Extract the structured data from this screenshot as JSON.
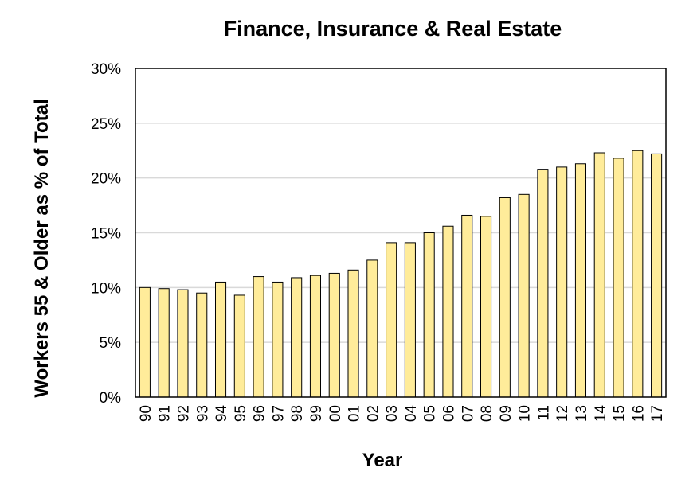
{
  "chart_data": {
    "type": "bar",
    "title": "Finance, Insurance & Real Estate",
    "xlabel": "Year",
    "ylabel": "Workers 55 & Older as % of Total",
    "categories": [
      "90",
      "91",
      "92",
      "93",
      "94",
      "95",
      "96",
      "97",
      "98",
      "99",
      "00",
      "01",
      "02",
      "03",
      "04",
      "05",
      "06",
      "07",
      "08",
      "09",
      "10",
      "11",
      "12",
      "13",
      "14",
      "15",
      "16",
      "17"
    ],
    "values": [
      10.0,
      9.9,
      9.8,
      9.5,
      10.5,
      9.3,
      11.0,
      10.5,
      10.9,
      11.1,
      11.3,
      11.6,
      12.5,
      14.1,
      14.1,
      15.0,
      15.6,
      16.6,
      16.5,
      18.2,
      18.5,
      20.8,
      21.0,
      21.3,
      22.3,
      21.8,
      22.5,
      22.2
    ],
    "ylim": [
      0,
      30
    ],
    "yticks": [
      0,
      5,
      10,
      15,
      20,
      25,
      30
    ],
    "ytick_labels": [
      "0%",
      "5%",
      "10%",
      "15%",
      "20%",
      "25%",
      "30%"
    ],
    "grid": "horizontal",
    "colors": {
      "bar_fill": "#FFEC9A",
      "bar_stroke": "#000000",
      "grid": "#D9D9D9"
    }
  }
}
